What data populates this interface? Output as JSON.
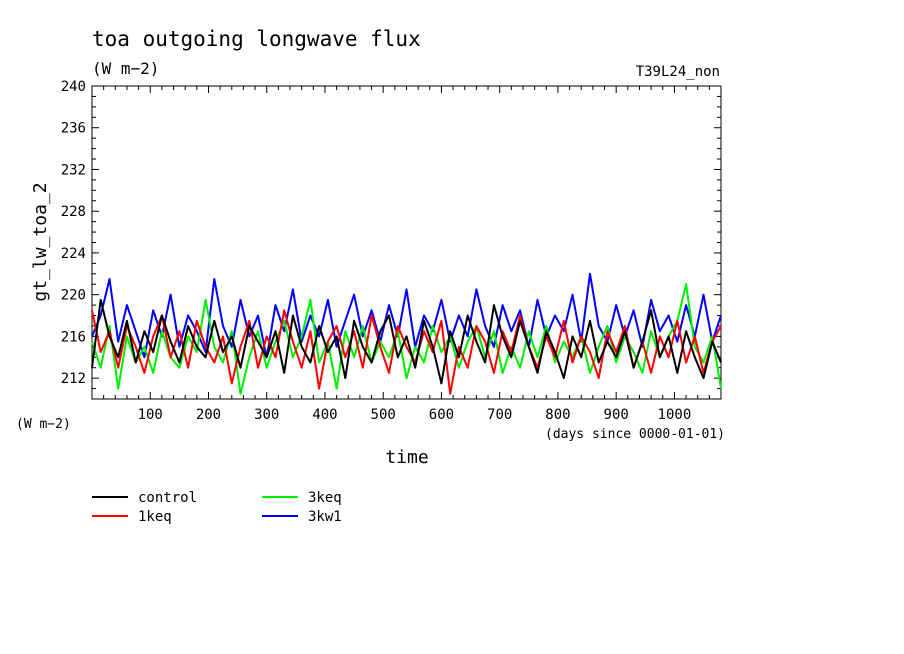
{
  "chart_data": {
    "type": "line",
    "title": "toa outgoing longwave flux",
    "subtitle": "(W m−2)",
    "run_label": "T39L24_non",
    "ylabel": "gt_lw_toa_2",
    "y_units": "(W m−2)",
    "xlabel": "time",
    "x_units": "(days since 0000-01-01)",
    "xlim": [
      0,
      1080
    ],
    "ylim": [
      210,
      240
    ],
    "x_ticks": [
      100,
      200,
      300,
      400,
      500,
      600,
      700,
      800,
      900,
      1000
    ],
    "y_ticks": [
      212,
      216,
      220,
      224,
      228,
      232,
      236,
      240
    ],
    "grid": false,
    "legend_position": "bottom-left",
    "series": [
      {
        "name": "control",
        "color": "#000000",
        "x": [
          0,
          15,
          30,
          45,
          60,
          75,
          90,
          105,
          120,
          135,
          150,
          165,
          180,
          195,
          210,
          225,
          240,
          255,
          270,
          285,
          300,
          315,
          330,
          345,
          360,
          375,
          390,
          405,
          420,
          435,
          450,
          465,
          480,
          495,
          510,
          525,
          540,
          555,
          570,
          585,
          600,
          615,
          630,
          645,
          660,
          675,
          690,
          705,
          720,
          735,
          750,
          765,
          780,
          795,
          810,
          825,
          840,
          855,
          870,
          885,
          900,
          915,
          930,
          945,
          960,
          975,
          990,
          1005,
          1020,
          1035,
          1050,
          1065,
          1080
        ],
        "y": [
          213.0,
          219.5,
          216.0,
          214.0,
          217.5,
          213.5,
          216.5,
          214.5,
          218.0,
          215.5,
          213.5,
          217.0,
          215.0,
          214.0,
          217.5,
          214.5,
          216.0,
          213.0,
          217.0,
          215.5,
          214.0,
          216.5,
          212.5,
          218.0,
          215.0,
          213.5,
          217.0,
          214.5,
          216.0,
          212.0,
          217.5,
          215.0,
          213.5,
          216.5,
          218.0,
          214.0,
          216.0,
          213.0,
          217.5,
          215.0,
          211.5,
          216.5,
          214.0,
          218.0,
          215.5,
          213.5,
          219.0,
          216.0,
          214.0,
          217.5,
          215.0,
          212.5,
          216.5,
          214.5,
          212.0,
          216.0,
          214.0,
          217.5,
          213.5,
          215.5,
          214.0,
          216.5,
          213.0,
          215.5,
          218.5,
          214.0,
          216.0,
          212.5,
          216.5,
          214.0,
          212.0,
          215.5,
          213.5
        ]
      },
      {
        "name": "1keq",
        "color": "#ff0000",
        "x": [
          0,
          15,
          30,
          45,
          60,
          75,
          90,
          105,
          120,
          135,
          150,
          165,
          180,
          195,
          210,
          225,
          240,
          255,
          270,
          285,
          300,
          315,
          330,
          345,
          360,
          375,
          390,
          405,
          420,
          435,
          450,
          465,
          480,
          495,
          510,
          525,
          540,
          555,
          570,
          585,
          600,
          615,
          630,
          645,
          660,
          675,
          690,
          705,
          720,
          735,
          750,
          765,
          780,
          795,
          810,
          825,
          840,
          855,
          870,
          885,
          900,
          915,
          930,
          945,
          960,
          975,
          990,
          1005,
          1020,
          1035,
          1050,
          1065,
          1080
        ],
        "y": [
          218.5,
          214.5,
          216.5,
          213.0,
          217.0,
          215.0,
          212.5,
          216.0,
          218.0,
          214.0,
          216.5,
          213.0,
          217.5,
          215.0,
          213.5,
          216.0,
          211.5,
          215.0,
          217.5,
          213.0,
          216.0,
          214.0,
          218.5,
          215.5,
          213.0,
          216.5,
          211.0,
          215.5,
          217.0,
          214.0,
          216.5,
          213.0,
          218.0,
          215.0,
          212.5,
          217.0,
          215.0,
          213.5,
          216.5,
          214.5,
          217.5,
          210.5,
          215.0,
          213.0,
          217.0,
          215.5,
          212.5,
          216.5,
          214.5,
          218.0,
          215.0,
          213.0,
          216.0,
          214.0,
          217.5,
          213.5,
          216.0,
          214.5,
          212.0,
          216.5,
          214.5,
          217.0,
          213.0,
          215.5,
          212.5,
          216.0,
          214.0,
          217.5,
          213.5,
          216.0,
          212.5,
          215.5,
          217.0
        ]
      },
      {
        "name": "3keq",
        "color": "#00ee00",
        "x": [
          0,
          15,
          30,
          45,
          60,
          75,
          90,
          105,
          120,
          135,
          150,
          165,
          180,
          195,
          210,
          225,
          240,
          255,
          270,
          285,
          300,
          315,
          330,
          345,
          360,
          375,
          390,
          405,
          420,
          435,
          450,
          465,
          480,
          495,
          510,
          525,
          540,
          555,
          570,
          585,
          600,
          615,
          630,
          645,
          660,
          675,
          690,
          705,
          720,
          735,
          750,
          765,
          780,
          795,
          810,
          825,
          840,
          855,
          870,
          885,
          900,
          915,
          930,
          945,
          960,
          975,
          990,
          1005,
          1020,
          1035,
          1050,
          1065,
          1080
        ],
        "y": [
          215.5,
          213.0,
          217.0,
          211.0,
          216.0,
          213.5,
          215.0,
          212.5,
          216.5,
          214.0,
          213.0,
          216.0,
          214.5,
          219.5,
          215.0,
          213.5,
          216.5,
          210.5,
          214.0,
          216.5,
          213.0,
          215.5,
          217.5,
          214.0,
          216.0,
          219.5,
          213.5,
          215.5,
          211.0,
          216.5,
          214.0,
          217.0,
          213.5,
          215.5,
          214.0,
          216.5,
          212.0,
          215.0,
          213.5,
          217.0,
          214.5,
          216.0,
          213.0,
          215.5,
          217.0,
          214.0,
          216.5,
          212.5,
          215.0,
          213.0,
          216.5,
          214.0,
          217.0,
          213.5,
          215.5,
          214.0,
          216.0,
          212.5,
          215.0,
          217.0,
          213.5,
          216.0,
          214.5,
          212.5,
          216.5,
          214.0,
          216.0,
          217.5,
          221.0,
          215.0,
          213.5,
          216.0,
          211.0
        ]
      },
      {
        "name": "3kw1",
        "color": "#0000ff",
        "x": [
          0,
          15,
          30,
          45,
          60,
          75,
          90,
          105,
          120,
          135,
          150,
          165,
          180,
          195,
          210,
          225,
          240,
          255,
          270,
          285,
          300,
          315,
          330,
          345,
          360,
          375,
          390,
          405,
          420,
          435,
          450,
          465,
          480,
          495,
          510,
          525,
          540,
          555,
          570,
          585,
          600,
          615,
          630,
          645,
          660,
          675,
          690,
          705,
          720,
          735,
          750,
          765,
          780,
          795,
          810,
          825,
          840,
          855,
          870,
          885,
          900,
          915,
          930,
          945,
          960,
          975,
          990,
          1005,
          1020,
          1035,
          1050,
          1065,
          1080
        ],
        "y": [
          216.0,
          218.0,
          221.5,
          215.5,
          219.0,
          216.5,
          214.0,
          218.5,
          216.0,
          220.0,
          215.0,
          218.0,
          216.5,
          214.5,
          221.5,
          217.0,
          215.0,
          219.5,
          216.0,
          218.0,
          214.0,
          219.0,
          216.5,
          220.5,
          215.5,
          218.0,
          216.0,
          219.5,
          215.0,
          217.5,
          220.0,
          216.0,
          218.5,
          215.5,
          219.0,
          216.0,
          220.5,
          215.0,
          218.0,
          216.5,
          219.5,
          215.5,
          218.0,
          216.0,
          220.5,
          217.0,
          215.0,
          219.0,
          216.5,
          218.5,
          215.0,
          219.5,
          216.0,
          218.0,
          216.5,
          220.0,
          215.5,
          222.0,
          217.0,
          215.5,
          219.0,
          216.0,
          218.5,
          215.0,
          219.5,
          216.5,
          218.0,
          215.5,
          219.0,
          216.0,
          220.0,
          215.5,
          218.0
        ]
      }
    ]
  }
}
